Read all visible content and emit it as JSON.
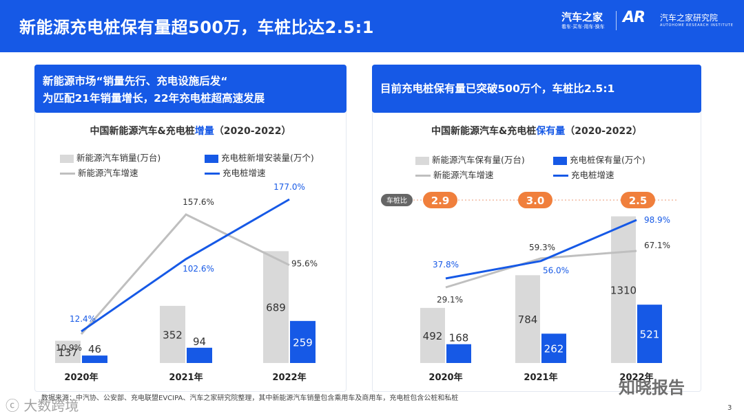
{
  "header": {
    "title": "新能源充电桩保有量超500万，车桩比达2.5:1"
  },
  "logo": {
    "main": "汽车之家",
    "sub": "看车·买车·用车·换车",
    "ar": "AR",
    "institute": "汽车之家研究院",
    "institute_en": "AUTOHOME RESEARCH INSTITUTE"
  },
  "left_panel": {
    "banner_line1": "新能源市场“销量先行、充电设施后发“",
    "banner_line2": "为匹配21年销量增长，22年充电桩超高速发展",
    "title_prefix": "中国新能源汽车&充电桩",
    "title_highlight": "增量",
    "title_suffix": "（2020-2022）",
    "legend": {
      "bar_gray": "新能源汽车销量(万台)",
      "bar_blue": "充电桩新增安装量(万个)",
      "line_gray": "新能源汽车增速",
      "line_blue": "充电桩增速"
    }
  },
  "right_panel": {
    "banner": "目前充电桩保有量已突破500万个，车桩比2.5:1",
    "title_prefix": "中国新能源汽车&充电桩",
    "title_highlight": "保有量",
    "title_suffix": "（2020-2022）",
    "legend": {
      "bar_gray": "新能源汽车保有量(万台)",
      "bar_blue": "充电桩保有量(万个)",
      "line_gray": "新能源汽车增速",
      "line_blue": "充电桩增速"
    },
    "ratio_label": "车桩比",
    "ratios": [
      "2.9",
      "3.0",
      "2.5"
    ]
  },
  "chart_data": [
    {
      "type": "bar",
      "title": "中国新能源汽车&充电桩增量（2020-2022）",
      "categories": [
        "2020年",
        "2021年",
        "2022年"
      ],
      "series": [
        {
          "name": "新能源汽车销量(万台)",
          "kind": "bar",
          "values": [
            137,
            352,
            689
          ]
        },
        {
          "name": "充电桩新增安装量(万个)",
          "kind": "bar",
          "values": [
            46,
            94,
            259
          ]
        },
        {
          "name": "新能源汽车增速",
          "kind": "line",
          "values": [
            10.9,
            157.6,
            95.6
          ],
          "labels": [
            "10.9%",
            "157.6%",
            "95.6%"
          ]
        },
        {
          "name": "充电桩增速",
          "kind": "line",
          "values": [
            12.4,
            102.6,
            177.0
          ],
          "labels": [
            "12.4%",
            "102.6%",
            "177.0%"
          ]
        }
      ]
    },
    {
      "type": "bar",
      "title": "中国新能源汽车&充电桩保有量（2020-2022）",
      "categories": [
        "2020年",
        "2021年",
        "2022年"
      ],
      "series": [
        {
          "name": "新能源汽车保有量(万台)",
          "kind": "bar",
          "values": [
            492,
            784,
            1310
          ]
        },
        {
          "name": "充电桩保有量(万个)",
          "kind": "bar",
          "values": [
            168,
            262,
            521
          ]
        },
        {
          "name": "新能源汽车增速",
          "kind": "line",
          "values": [
            29.1,
            59.3,
            67.1
          ],
          "labels": [
            "29.1%",
            "59.3%",
            "67.1%"
          ]
        },
        {
          "name": "充电桩增速",
          "kind": "line",
          "values": [
            37.8,
            56.0,
            98.9
          ],
          "labels": [
            "37.8%",
            "56.0%",
            "98.9%"
          ]
        }
      ],
      "ratio_label": "车桩比",
      "ratios": [
        "2.9",
        "3.0",
        "2.5"
      ]
    }
  ],
  "footer": {
    "source": "数据来源：中汽协、公安部、充电联盟EVCIPA、汽车之家研究院整理，其中新能源汽车销量包含乘用车及商用车，充电桩包含公桩和私桩",
    "page": "3",
    "wm_left": "ⓒ 大数跨境",
    "wm_right": "知晓报告"
  },
  "colors": {
    "primary": "#1659e6",
    "gray_bar": "#d9d9d9",
    "gray_line": "#bfbfbf",
    "ratio_orange": "#f07f3c"
  }
}
